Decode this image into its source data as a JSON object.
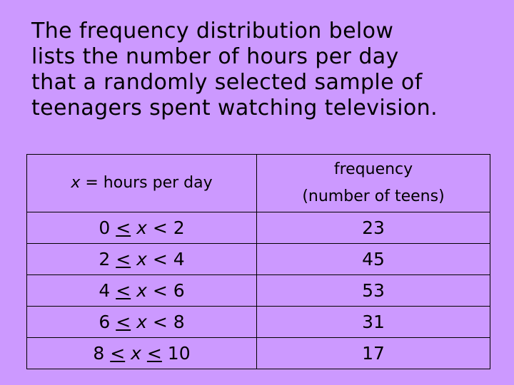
{
  "intro": {
    "lines": [
      "The frequency distribution below",
      "lists the number of hours per day",
      "that a randomly selected sample of",
      "teenagers spent watching television."
    ]
  },
  "table": {
    "header": {
      "col1_var": "x",
      "col1_rest": " = hours per day",
      "col2_line1": "frequency",
      "col2_line2": "(number of teens)"
    },
    "rows": [
      {
        "lower": "0",
        "op1": "<",
        "var": "x",
        "op2": "<",
        "upper": "2",
        "op1_underline": true,
        "op2_underline": false,
        "frequency": "23"
      },
      {
        "lower": "2",
        "op1": "<",
        "var": "x",
        "op2": "<",
        "upper": "4",
        "op1_underline": true,
        "op2_underline": false,
        "frequency": "45"
      },
      {
        "lower": "4",
        "op1": "<",
        "var": "x",
        "op2": "<",
        "upper": "6",
        "op1_underline": true,
        "op2_underline": false,
        "frequency": "53"
      },
      {
        "lower": "6",
        "op1": "<",
        "var": "x",
        "op2": "<",
        "upper": "8",
        "op1_underline": true,
        "op2_underline": false,
        "frequency": "31"
      },
      {
        "lower": "8",
        "op1": "<",
        "var": "x",
        "op2": "<",
        "upper": "10",
        "op1_underline": true,
        "op2_underline": true,
        "frequency": "17"
      }
    ]
  }
}
